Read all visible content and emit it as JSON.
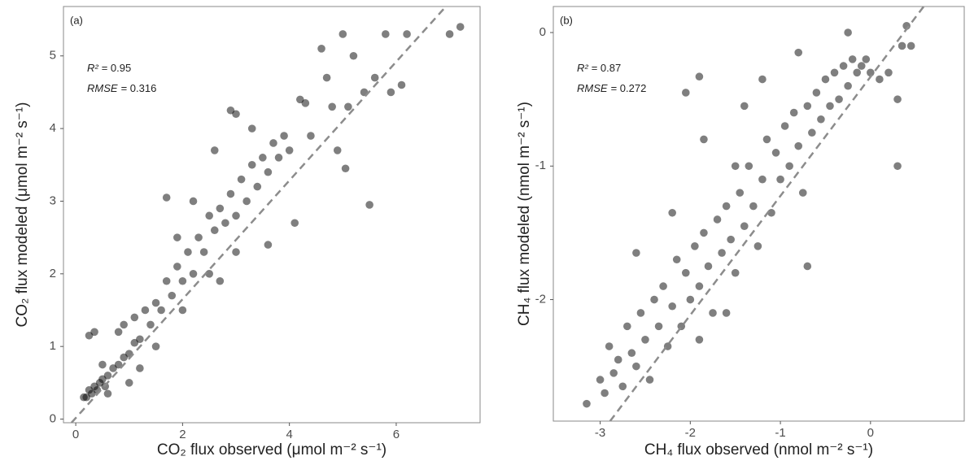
{
  "chart_data": [
    {
      "type": "scatter",
      "panel_label": "(a)",
      "annotations": [
        {
          "symbol": "R²",
          "rest": "= 0.95"
        },
        {
          "symbol": "RMSE",
          "rest": "= 0.316"
        }
      ],
      "x_label": "CO₂ flux observed (μmol m⁻² s⁻¹)",
      "y_label": "CO₂ flux modeled (μmol m⁻² s⁻¹)",
      "xlim": [
        -0.23,
        7.57
      ],
      "ylim": [
        -0.05,
        5.68
      ],
      "xticks": [
        0,
        2,
        4,
        6
      ],
      "yticks": [
        0,
        1,
        2,
        3,
        4,
        5
      ],
      "color": "#000000",
      "opacity": 0.5,
      "reference_line": {
        "x": [
          -0.08,
          6.93
        ],
        "y": [
          -0.05,
          5.68
        ],
        "color": "#8c8c8c"
      },
      "x": [
        0.2,
        0.25,
        0.3,
        0.35,
        0.4,
        0.45,
        0.5,
        0.55,
        0.6,
        0.25,
        0.35,
        0.7,
        0.8,
        0.9,
        1.0,
        1.1,
        1.2,
        0.9,
        1.3,
        1.4,
        1.5,
        1.6,
        1.7,
        1.8,
        1.9,
        2.0,
        2.1,
        2.2,
        2.3,
        2.4,
        2.5,
        2.6,
        2.7,
        2.8,
        2.9,
        3.0,
        3.1,
        3.2,
        3.3,
        3.4,
        3.5,
        3.6,
        3.7,
        3.8,
        3.9,
        4.0,
        2.9,
        3.0,
        4.1,
        4.2,
        4.3,
        4.6,
        4.7,
        4.8,
        5.0,
        5.1,
        5.2,
        5.4,
        5.5,
        5.6,
        5.8,
        5.9,
        6.1,
        6.2,
        7.0,
        7.2,
        1.0,
        1.5,
        2.0,
        2.5,
        3.0,
        1.7,
        2.2,
        2.6,
        3.3,
        0.5,
        0.15,
        1.2,
        0.8,
        4.4,
        4.9,
        5.05,
        1.9,
        3.6,
        2.7,
        0.6,
        1.1
      ],
      "y": [
        0.3,
        0.4,
        0.35,
        0.45,
        0.4,
        0.5,
        0.55,
        0.45,
        0.6,
        1.15,
        1.2,
        0.7,
        0.75,
        0.85,
        0.9,
        1.05,
        1.1,
        1.3,
        1.5,
        1.3,
        1.6,
        1.5,
        1.9,
        1.7,
        2.1,
        1.9,
        2.3,
        2.0,
        2.5,
        2.3,
        2.8,
        2.6,
        2.9,
        2.7,
        3.1,
        2.8,
        3.3,
        3.0,
        3.5,
        3.2,
        3.6,
        3.4,
        3.8,
        3.6,
        3.9,
        3.7,
        4.25,
        4.2,
        2.7,
        4.4,
        4.35,
        5.1,
        4.7,
        4.3,
        5.3,
        4.3,
        5.0,
        4.5,
        2.95,
        4.7,
        5.3,
        4.5,
        4.6,
        5.3,
        5.3,
        5.4,
        0.5,
        1.0,
        1.5,
        2.0,
        2.3,
        3.05,
        3.0,
        3.7,
        4.0,
        0.75,
        0.3,
        0.7,
        1.2,
        3.9,
        3.7,
        3.45,
        2.5,
        2.4,
        1.9,
        0.35,
        1.4
      ]
    },
    {
      "type": "scatter",
      "panel_label": "(b)",
      "annotations": [
        {
          "symbol": "R²",
          "rest": "= 0.87"
        },
        {
          "symbol": "RMSE",
          "rest": "= 0.272"
        }
      ],
      "x_label": "CH₄ flux observed (nmol m⁻² s⁻¹)",
      "y_label": "CH₄ flux modeled (nmol m⁻² s⁻¹)",
      "xlim": [
        -3.52,
        1.04
      ],
      "ylim": [
        -2.91,
        0.195
      ],
      "xticks": [
        -3,
        -2,
        -1,
        0
      ],
      "yticks": [
        -2,
        -1,
        0
      ],
      "color": "#000000",
      "opacity": 0.5,
      "reference_line": {
        "x": [
          -2.89,
          0.59
        ],
        "y": [
          -2.91,
          0.195
        ],
        "color": "#8c8c8c"
      },
      "x": [
        -3.15,
        -3.0,
        -2.95,
        -2.9,
        -2.85,
        -2.8,
        -2.75,
        -2.7,
        -2.65,
        -2.6,
        -2.55,
        -2.5,
        -2.45,
        -2.4,
        -2.35,
        -2.3,
        -2.25,
        -2.2,
        -2.15,
        -2.1,
        -2.05,
        -2.0,
        -1.95,
        -1.9,
        -1.85,
        -1.8,
        -1.75,
        -1.7,
        -1.65,
        -1.6,
        -1.55,
        -1.5,
        -1.45,
        -1.4,
        -1.35,
        -1.3,
        -1.25,
        -1.2,
        -1.15,
        -1.1,
        -1.05,
        -1.0,
        -0.95,
        -0.9,
        -0.85,
        -0.8,
        -0.75,
        -0.7,
        -0.65,
        -0.6,
        -0.55,
        -0.5,
        -0.45,
        -0.4,
        -0.35,
        -0.3,
        -0.25,
        -0.2,
        -0.15,
        -0.1,
        -0.05,
        0.0,
        0.1,
        0.2,
        0.3,
        0.3,
        0.35,
        0.4,
        0.45,
        -0.25,
        -1.9,
        -2.05,
        -1.85,
        -0.8,
        -1.4,
        -1.2,
        -0.7,
        -2.2,
        -2.6,
        -1.9,
        -1.6,
        -1.5
      ],
      "y": [
        -2.78,
        -2.6,
        -2.7,
        -2.35,
        -2.55,
        -2.45,
        -2.65,
        -2.2,
        -2.4,
        -2.5,
        -2.1,
        -2.3,
        -2.6,
        -2.0,
        -2.2,
        -1.9,
        -2.35,
        -2.05,
        -1.7,
        -2.2,
        -1.8,
        -2.0,
        -1.6,
        -1.9,
        -1.5,
        -1.75,
        -2.1,
        -1.4,
        -1.65,
        -1.3,
        -1.55,
        -1.8,
        -1.2,
        -1.45,
        -1.0,
        -1.3,
        -1.6,
        -1.1,
        -0.8,
        -1.35,
        -0.9,
        -1.1,
        -0.7,
        -1.0,
        -0.6,
        -0.85,
        -1.2,
        -0.55,
        -0.75,
        -0.45,
        -0.65,
        -0.35,
        -0.55,
        -0.3,
        -0.5,
        -0.25,
        -0.4,
        -0.2,
        -0.3,
        -0.25,
        -0.2,
        -0.3,
        -0.35,
        -0.3,
        -1.0,
        -0.5,
        -0.1,
        0.05,
        -0.1,
        0.0,
        -0.33,
        -0.45,
        -0.8,
        -0.15,
        -0.55,
        -0.35,
        -1.75,
        -1.35,
        -1.65,
        -2.3,
        -2.1,
        -1.0
      ]
    }
  ]
}
